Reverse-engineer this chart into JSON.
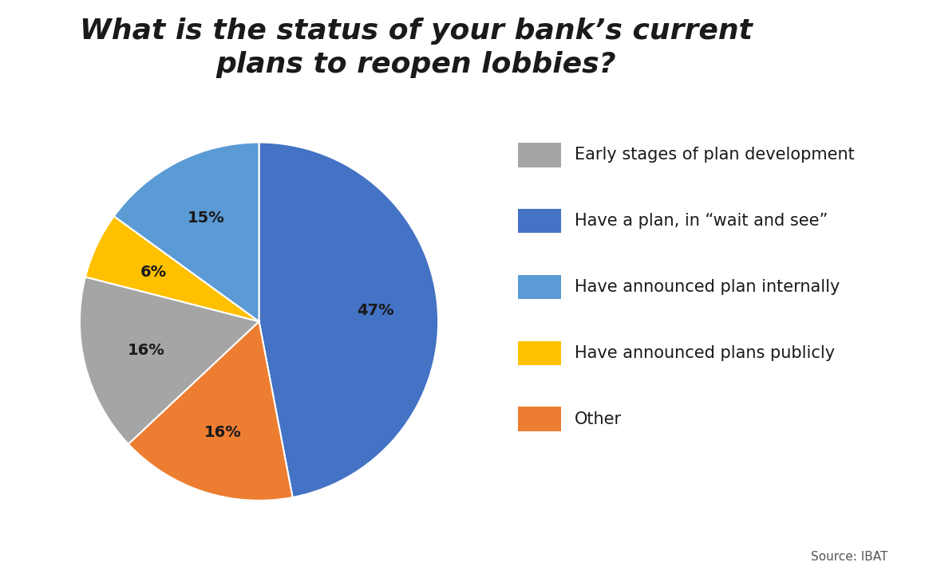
{
  "title": "What is the status of your bank’s current\nplans to reopen lobbies?",
  "slices": [
    47,
    16,
    16,
    6,
    15
  ],
  "labels": [
    "47%",
    "16%",
    "16%",
    "6%",
    "15%"
  ],
  "colors": [
    "#4472C4",
    "#ED7D31",
    "#A5A5A5",
    "#FFC000",
    "#5B9BD5"
  ],
  "legend_labels": [
    "Early stages of plan development",
    "Have a plan, in “wait and see”",
    "Have announced plan internally",
    "Have announced plans publicly",
    "Other"
  ],
  "legend_colors": [
    "#A5A5A5",
    "#4472C4",
    "#5B9BD5",
    "#FFC000",
    "#ED7D31"
  ],
  "source_text": "Source: IBAT",
  "background_color": "#FFFFFF",
  "label_fontsize": 14,
  "title_fontsize": 26,
  "legend_fontsize": 15
}
